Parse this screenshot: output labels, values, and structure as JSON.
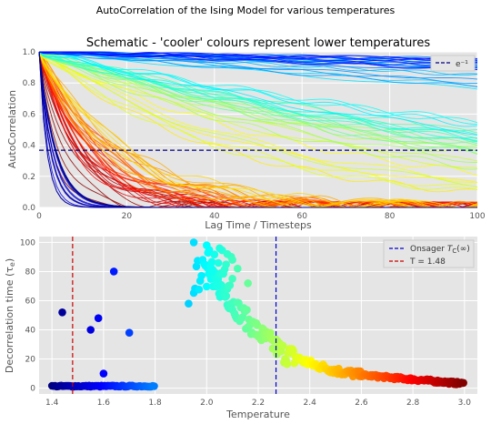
{
  "suptitle": "AutoCorrelation of the Ising Model for various temperatures",
  "colors": {
    "axes_bg": "#e5e5e5",
    "grid": "#ffffff",
    "tick_text": "#555555",
    "label_text": "#555555",
    "title_text": "#000000",
    "hline": "#00007f",
    "onsager_line": "#0000cc",
    "t_line": "#cc0000"
  },
  "chart_data": [
    {
      "type": "line",
      "title": "Schematic - 'cooler' colours represent lower temperatures",
      "xlabel": "Lag Time / Timesteps",
      "ylabel": "AutoCorrelation",
      "xlim": [
        0,
        100
      ],
      "ylim": [
        0,
        1.0
      ],
      "xticks": [
        0,
        20,
        40,
        60,
        80,
        100
      ],
      "xtick_labels": [
        "0",
        "20",
        "40",
        "60",
        "80",
        "100"
      ],
      "yticks": [
        0,
        0.2,
        0.4,
        0.6,
        0.8,
        1.0
      ],
      "ytick_labels": [
        "0.0",
        "0.2",
        "0.4",
        "0.6",
        "0.8",
        "1.0"
      ],
      "grid": true,
      "colormap": "jet",
      "series_description": "one autocorrelation curve per temperature, colored by temperature",
      "hline": {
        "y": 0.3679,
        "label": "e⁻¹",
        "style": "dashed"
      },
      "legend": {
        "placement": "upper right",
        "entries": [
          "e⁻¹"
        ]
      }
    },
    {
      "type": "scatter",
      "title": "",
      "xlabel": "Temperature",
      "ylabel": "Decorrelation time (τe)",
      "xlim": [
        1.35,
        3.05
      ],
      "ylim": [
        -4,
        104
      ],
      "xticks": [
        1.4,
        1.6,
        1.8,
        2.0,
        2.2,
        2.4,
        2.6,
        2.8,
        3.0
      ],
      "xtick_labels": [
        "1.4",
        "1.6",
        "1.8",
        "2.0",
        "2.2",
        "2.4",
        "2.6",
        "2.8",
        "3.0"
      ],
      "yticks": [
        0,
        20,
        40,
        60,
        80,
        100
      ],
      "ytick_labels": [
        "0",
        "20",
        "40",
        "60",
        "80",
        "100"
      ],
      "grid": true,
      "colormap": "jet",
      "vlines": [
        {
          "x": 2.269,
          "label": "Onsager Tc(∞)",
          "style": "dashed",
          "color": "#0000cc"
        },
        {
          "x": 1.48,
          "label": "T = 1.48",
          "style": "dashed",
          "color": "#cc0000"
        }
      ],
      "legend": {
        "placement": "upper right",
        "entries": [
          "Onsager Tc(∞)",
          "T = 1.48"
        ]
      },
      "outliers": [
        {
          "x": 1.44,
          "y": 52
        },
        {
          "x": 1.55,
          "y": 40
        },
        {
          "x": 1.58,
          "y": 48
        },
        {
          "x": 1.6,
          "y": 10
        },
        {
          "x": 1.64,
          "y": 80
        },
        {
          "x": 1.7,
          "y": 38
        },
        {
          "x": 1.93,
          "y": 58
        },
        {
          "x": 1.95,
          "y": 100
        },
        {
          "x": 2.0,
          "y": 98
        },
        {
          "x": 2.05,
          "y": 96
        },
        {
          "x": 2.08,
          "y": 92
        },
        {
          "x": 2.1,
          "y": 88
        },
        {
          "x": 2.02,
          "y": 80
        },
        {
          "x": 2.12,
          "y": 82
        },
        {
          "x": 2.04,
          "y": 70
        },
        {
          "x": 2.16,
          "y": 72
        }
      ],
      "low_t_band": {
        "x_range": [
          1.4,
          1.8
        ],
        "y": 1
      },
      "trend": [
        {
          "x": 2.0,
          "y": 80
        },
        {
          "x": 2.1,
          "y": 58
        },
        {
          "x": 2.2,
          "y": 38
        },
        {
          "x": 2.3,
          "y": 24
        },
        {
          "x": 2.4,
          "y": 17
        },
        {
          "x": 2.5,
          "y": 12
        },
        {
          "x": 2.6,
          "y": 9
        },
        {
          "x": 2.8,
          "y": 6
        },
        {
          "x": 3.0,
          "y": 3
        }
      ]
    }
  ]
}
